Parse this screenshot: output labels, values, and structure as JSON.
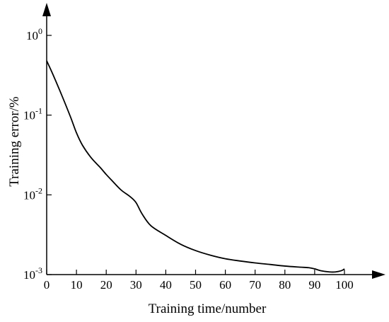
{
  "chart_data": {
    "type": "line",
    "xlabel": "Training time/number",
    "ylabel": "Training error/%",
    "xlim": [
      0,
      100
    ],
    "ylim": [
      0.001,
      1
    ],
    "yscale": "log",
    "grid": false,
    "x_ticks": [
      {
        "value": 0,
        "label": "0"
      },
      {
        "value": 10,
        "label": "10"
      },
      {
        "value": 20,
        "label": "20"
      },
      {
        "value": 30,
        "label": "30"
      },
      {
        "value": 40,
        "label": "40"
      },
      {
        "value": 50,
        "label": "50"
      },
      {
        "value": 60,
        "label": "60"
      },
      {
        "value": 70,
        "label": "70"
      },
      {
        "value": 80,
        "label": "80"
      },
      {
        "value": 90,
        "label": "90"
      },
      {
        "value": 100,
        "label": "100"
      }
    ],
    "y_ticks": [
      {
        "value": 1,
        "base": "10",
        "exp": "0"
      },
      {
        "value": 0.1,
        "base": "10",
        "exp": "-1"
      },
      {
        "value": 0.01,
        "base": "10",
        "exp": "-2"
      },
      {
        "value": 0.001,
        "base": "10",
        "exp": "-3"
      }
    ],
    "series": [
      {
        "color": "#000000",
        "x": [
          0,
          2,
          5,
          8,
          10,
          12,
          15,
          18,
          20,
          22,
          25,
          28,
          30,
          32,
          35,
          40,
          45,
          50,
          55,
          60,
          65,
          70,
          75,
          80,
          85,
          88,
          90,
          92,
          95,
          97,
          99,
          100
        ],
        "y": [
          0.48,
          0.33,
          0.18,
          0.095,
          0.06,
          0.042,
          0.029,
          0.022,
          0.018,
          0.015,
          0.0115,
          0.0095,
          0.008,
          0.0058,
          0.0041,
          0.0031,
          0.0024,
          0.002,
          0.00175,
          0.00158,
          0.00148,
          0.0014,
          0.00134,
          0.00128,
          0.00124,
          0.00122,
          0.00118,
          0.00112,
          0.00108,
          0.00108,
          0.00112,
          0.00118
        ]
      }
    ]
  }
}
